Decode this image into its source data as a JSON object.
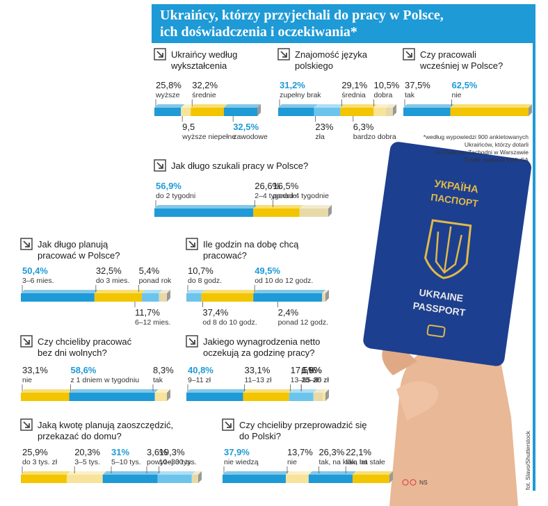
{
  "title": [
    "Ukraińcy, którzy przyjechali do pracy w Polsce,",
    "ich doświadczenia i oczekiwania*"
  ],
  "note": [
    "*według wypowiedzi 900 ankietowanych",
    "Ukraińców, którzy dotarli",
    "na Dworzec Zachodni w Warszawie"
  ],
  "source": "Źródło: badanie EWL SA",
  "passport": [
    "УКРАЇНА",
    "ПАСПОРТ",
    "UKRAINE",
    "PASSPORT"
  ],
  "credit": "fot. Slavo/Shutterstock",
  "sign": "NS",
  "chart_data": [
    {
      "type": "stacked-bar",
      "title": [
        "Ukraińcy według",
        "wykształcenia"
      ],
      "categories": [
        "wyższe",
        "wyższe niepełne",
        "średnie",
        "zawodowe"
      ],
      "values": [
        25.8,
        9.5,
        32.2,
        32.5
      ],
      "value_labels": [
        "25,8%",
        "9,5",
        "32,2%",
        "32,5%"
      ],
      "colors": [
        "#1e9ad6",
        "#f7e39a",
        "#f2c500",
        "#1e9ad6"
      ]
    },
    {
      "type": "stacked-bar",
      "title": [
        "Znajomość języka",
        "polskiego"
      ],
      "categories": [
        "zupełny brak",
        "zła",
        "średnia",
        "dobra",
        "bardzo dobra"
      ],
      "values": [
        31.2,
        23,
        29.1,
        10.5,
        6.3
      ],
      "value_labels": [
        "31,2%",
        "23%",
        "29,1%",
        "10,5%",
        "6,3%"
      ],
      "colors": [
        "#1e9ad6",
        "#6cc4ec",
        "#f2c500",
        "#f7e39a",
        "#e8d9a8"
      ]
    },
    {
      "type": "stacked-bar",
      "title": [
        "Czy pracowali",
        "wcześniej w Polsce?"
      ],
      "categories": [
        "tak",
        "nie"
      ],
      "values": [
        37.5,
        62.5
      ],
      "value_labels": [
        "37,5%",
        "62,5%"
      ],
      "colors": [
        "#1e9ad6",
        "#f2c500"
      ]
    },
    {
      "type": "stacked-bar",
      "title": [
        "Jak długo szukali pracy w Polsce?"
      ],
      "categories": [
        "do 2 tygodni",
        "2–4 tygodnie",
        "ponad 4 tygodnie"
      ],
      "values": [
        56.9,
        26.6,
        16.5
      ],
      "value_labels": [
        "56,9%",
        "26,6%",
        "16,5%"
      ],
      "colors": [
        "#1e9ad6",
        "#f2c500",
        "#e8d9a8"
      ]
    },
    {
      "type": "stacked-bar",
      "title": [
        "Jak długo planują",
        "pracować w Polsce?"
      ],
      "categories": [
        "3–6 mies.",
        "do 3 mies.",
        "6–12 mies.",
        "ponad rok"
      ],
      "values": [
        50.4,
        32.5,
        11.7,
        5.4
      ],
      "value_labels": [
        "50,4%",
        "32,5%",
        "11,7%",
        "5,4%"
      ],
      "colors": [
        "#1e9ad6",
        "#f2c500",
        "#6cc4ec",
        "#e8d9a8"
      ]
    },
    {
      "type": "stacked-bar",
      "title": [
        "Ile godzin na dobę chcą",
        "pracować?"
      ],
      "categories": [
        "do 8 godz.",
        "od 8 do 10 godz.",
        "od 10 do 12 godz.",
        "ponad 12 godz."
      ],
      "values": [
        10.7,
        37.4,
        49.5,
        2.4
      ],
      "value_labels": [
        "10,7%",
        "37,4%",
        "49,5%",
        "2,4%"
      ],
      "colors": [
        "#6cc4ec",
        "#f2c500",
        "#1e9ad6",
        "#e8d9a8"
      ]
    },
    {
      "type": "stacked-bar",
      "title": [
        "Czy chcieliby pracować",
        "bez dni wolnych?"
      ],
      "categories": [
        "nie",
        "z 1 dniem w tygodniu",
        "tak"
      ],
      "values": [
        33.1,
        58.6,
        8.3
      ],
      "value_labels": [
        "33,1%",
        "58,6%",
        "8,3%"
      ],
      "colors": [
        "#f2c500",
        "#1e9ad6",
        "#f7e39a"
      ]
    },
    {
      "type": "stacked-bar",
      "title": [
        "Jakiego wynagrodzenia netto",
        "oczekują za godzinę pracy?"
      ],
      "categories": [
        "9–11 zł",
        "11–13 zł",
        "13–15 zł",
        "15–20 zł",
        "20–35 zł"
      ],
      "values": [
        40.8,
        33.1,
        17.5,
        6.8,
        1.9
      ],
      "value_labels": [
        "40,8%",
        "33,1%",
        "17,5%",
        "6,8%",
        "1,9%"
      ],
      "colors": [
        "#1e9ad6",
        "#f2c500",
        "#6cc4ec",
        "#e8d9a8",
        "#f7e39a"
      ]
    },
    {
      "type": "stacked-bar",
      "title": [
        "Jaką kwotę planują zaoszczędzić,",
        "przekazać do domu?"
      ],
      "categories": [
        "do 3 tys. zł",
        "3–5 tys.",
        "5–10 tys.",
        "10–30 tys.",
        "powyżej 30 tys."
      ],
      "values": [
        25.9,
        20.3,
        31,
        19.3,
        3.6
      ],
      "value_labels": [
        "25,9%",
        "20,3%",
        "31%",
        "19,3%",
        "3,6%"
      ],
      "colors": [
        "#f2c500",
        "#f7e39a",
        "#1e9ad6",
        "#6cc4ec",
        "#e8d9a8"
      ]
    },
    {
      "type": "stacked-bar",
      "title": [
        "Czy chcieliby przeprowadzić się",
        "do Polski?"
      ],
      "categories": [
        "nie wiedzą",
        "nie",
        "tak, na kilka lat",
        "tak, na stałe"
      ],
      "values": [
        37.9,
        13.7,
        26.3,
        22.1
      ],
      "value_labels": [
        "37,9%",
        "13,7%",
        "26,3%",
        "22,1%"
      ],
      "colors": [
        "#1e9ad6",
        "#f7e39a",
        "#1e9ad6",
        "#f2c500"
      ]
    }
  ]
}
